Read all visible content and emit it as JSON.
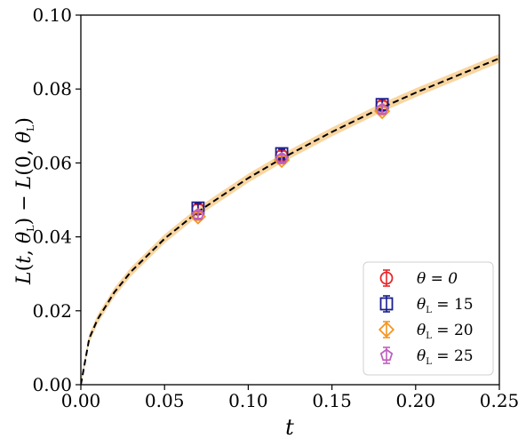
{
  "chart_data": {
    "type": "scatter",
    "xlabel": "t",
    "ylabel": "L(t, θ_L) − L(0, θ_L)",
    "xlim": [
      0.0,
      0.25
    ],
    "ylim": [
      0.0,
      0.1
    ],
    "x_ticks": [
      "0.00",
      "0.05",
      "0.10",
      "0.15",
      "0.20",
      "0.25"
    ],
    "y_ticks": [
      "0.00",
      "0.02",
      "0.04",
      "0.06",
      "0.08",
      "0.10"
    ],
    "grid": false,
    "legend_position": "bottom-right",
    "series": [
      {
        "name": "θ = 0",
        "marker": "circle",
        "color": "#e8262a",
        "x": [
          0.07,
          0.12,
          0.18
        ],
        "y": [
          0.0475,
          0.062,
          0.0755
        ],
        "err": [
          0.0012,
          0.0012,
          0.0012
        ]
      },
      {
        "name": "θ_L = 15",
        "marker": "square",
        "color": "#1a1f8f",
        "x": [
          0.07,
          0.12,
          0.18
        ],
        "y": [
          0.0478,
          0.0625,
          0.0758
        ],
        "err": [
          0.0012,
          0.0012,
          0.0015
        ]
      },
      {
        "name": "θ_L = 20",
        "marker": "diamond",
        "color": "#f5961e",
        "x": [
          0.07,
          0.12,
          0.18
        ],
        "y": [
          0.0455,
          0.0608,
          0.074
        ],
        "err": [
          0.001,
          0.001,
          0.001
        ]
      },
      {
        "name": "θ_L = 25",
        "marker": "pentagon",
        "color": "#c05fc0",
        "x": [
          0.07,
          0.12,
          0.18
        ],
        "y": [
          0.046,
          0.0612,
          0.0745
        ],
        "err": [
          0.001,
          0.001,
          0.001
        ]
      }
    ],
    "fit": {
      "color": "#000000",
      "band_color": "#f7cc8a",
      "style": "dashed",
      "x": [
        0.0,
        0.005,
        0.01,
        0.02,
        0.03,
        0.05,
        0.07,
        0.1,
        0.12,
        0.15,
        0.18,
        0.2,
        0.25
      ],
      "y": [
        0.0,
        0.0125,
        0.0177,
        0.025,
        0.0306,
        0.0395,
        0.0468,
        0.0559,
        0.0612,
        0.0684,
        0.075,
        0.079,
        0.0883
      ],
      "band_halfwidth": 0.0012
    }
  }
}
